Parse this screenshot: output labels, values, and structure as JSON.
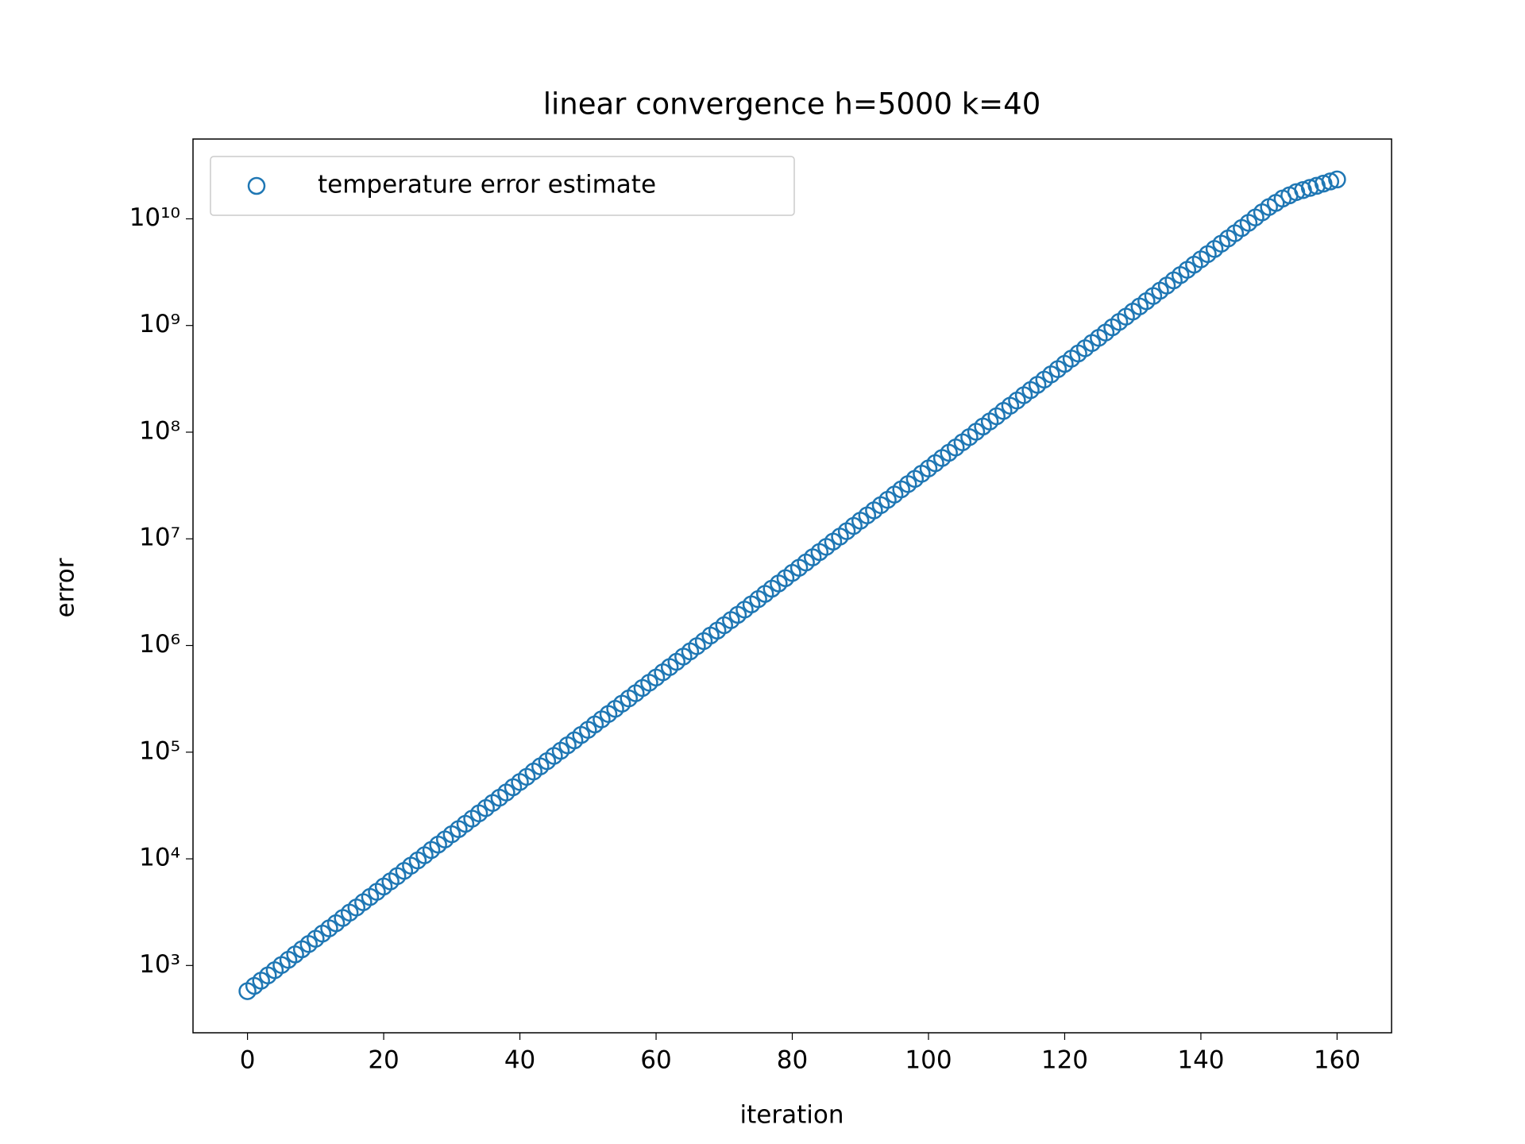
{
  "chart_data": {
    "type": "scatter",
    "title": "linear convergence h=5000 k=40",
    "xlabel": "iteration",
    "ylabel": "error",
    "yscale": "log",
    "legend": "upper left",
    "xlim": [
      -8,
      168
    ],
    "xticks": [
      0,
      20,
      40,
      60,
      80,
      100,
      120,
      140,
      160
    ],
    "ylim": [
      234,
      56000000000.0
    ],
    "yticks": [
      {
        "value": 1000,
        "label": "10³"
      },
      {
        "value": 10000,
        "label": "10⁴"
      },
      {
        "value": 100000,
        "label": "10⁵"
      },
      {
        "value": 1000000,
        "label": "10⁶"
      },
      {
        "value": 10000000,
        "label": "10⁷"
      },
      {
        "value": 100000000,
        "label": "10⁸"
      },
      {
        "value": 1000000000,
        "label": "10⁹"
      },
      {
        "value": 10000000000,
        "label": "10¹⁰"
      }
    ],
    "series": [
      {
        "name": "temperature error estimate",
        "color": "#1f77b4",
        "x": [
          0,
          1,
          2,
          3,
          4,
          5,
          6,
          7,
          8,
          9,
          10,
          11,
          12,
          13,
          14,
          15,
          16,
          17,
          18,
          19,
          20,
          21,
          22,
          23,
          24,
          25,
          26,
          27,
          28,
          29,
          30,
          31,
          32,
          33,
          34,
          35,
          36,
          37,
          38,
          39,
          40,
          41,
          42,
          43,
          44,
          45,
          46,
          47,
          48,
          49,
          50,
          51,
          52,
          53,
          54,
          55,
          56,
          57,
          58,
          59,
          60,
          61,
          62,
          63,
          64,
          65,
          66,
          67,
          68,
          69,
          70,
          71,
          72,
          73,
          74,
          75,
          76,
          77,
          78,
          79,
          80,
          81,
          82,
          83,
          84,
          85,
          86,
          87,
          88,
          89,
          90,
          91,
          92,
          93,
          94,
          95,
          96,
          97,
          98,
          99,
          100,
          101,
          102,
          103,
          104,
          105,
          106,
          107,
          108,
          109,
          110,
          111,
          112,
          113,
          114,
          115,
          116,
          117,
          118,
          119,
          120,
          121,
          122,
          123,
          124,
          125,
          126,
          127,
          128,
          129,
          130,
          131,
          132,
          133,
          134,
          135,
          136,
          137,
          138,
          139,
          140,
          141,
          142,
          143,
          144,
          145,
          146,
          147,
          148,
          149,
          150,
          151,
          152,
          153,
          154,
          155,
          156,
          157,
          158,
          159,
          160
        ],
        "values": [
          575.0,
          644.0,
          721.0,
          807.0,
          904.0,
          1010.0,
          1130.0,
          1270.0,
          1420.0,
          1590.0,
          1780.0,
          1990.0,
          2230.0,
          2490.0,
          2790.0,
          3130.0,
          3500.0,
          3920.0,
          4390.0,
          4910.0,
          5500.0,
          6150.0,
          6890.0,
          7710.0,
          8630.0,
          9660.0,
          10800.0,
          12100.0,
          13600.0,
          15200.0,
          17000.0,
          19000.0,
          21300.0,
          23800.0,
          26700.0,
          29900.0,
          33400.0,
          37400.0,
          41900.0,
          46900.0,
          52500.0,
          58700.0,
          65800.0,
          73600.0,
          82400.0,
          92300.0,
          103000.0,
          116000.0,
          129000.0,
          145000.0,
          162000.0,
          182000.0,
          203000.0,
          228000.0,
          255000.0,
          285000.0,
          319000.0,
          357000.0,
          400000.0,
          448000.0,
          501000.0,
          561000.0,
          628000.0,
          703000.0,
          787000.0,
          881000.0,
          986000.0,
          1100000.0,
          1240000.0,
          1380000.0,
          1550000.0,
          1730000.0,
          1940000.0,
          2170000.0,
          2430000.0,
          2720000.0,
          3050000.0,
          3410000.0,
          3820000.0,
          4280000.0,
          4790000.0,
          5360000.0,
          6000000.0,
          6710000.0,
          7520000.0,
          8410000.0,
          9420000.0,
          10500000.0,
          11800000.0,
          13200000.0,
          14800000.0,
          16600000.0,
          18500000.0,
          20700000.0,
          23200000.0,
          26000000.0,
          29100000.0,
          32600000.0,
          36500000.0,
          40800000.0,
          45700000.0,
          51200000.0,
          57300000.0,
          64100000.0,
          71800000.0,
          80400000.0,
          89900000.0,
          101000000.0,
          113000000.0,
          126000000.0,
          141000000.0,
          158000000.0,
          177000000.0,
          198000000.0,
          222000000.0,
          248000000.0,
          278000000.0,
          311000000.0,
          348000000.0,
          390000000.0,
          437000000.0,
          489000000.0,
          547000000.0,
          612000000.0,
          685000000.0,
          767000000.0,
          859000000.0,
          962000000.0,
          1080000000.0,
          1210000000.0,
          1350000000.0,
          1510000000.0,
          1690000000.0,
          1890000000.0,
          2120000000.0,
          2370000000.0,
          2650000000.0,
          2970000000.0,
          3330000000.0,
          3720000000.0,
          4170000000.0,
          4670000000.0,
          5220000000.0,
          5850000000.0,
          6550000000.0,
          7330000000.0,
          8200000000.0,
          9180000000.0,
          10300000000.0,
          11500000000.0,
          12900000000.0,
          14100000000.0,
          15500000000.0,
          16600000000.0,
          17800000000.0,
          18600000000.0,
          19500000000.0,
          20400000000.0,
          21400000000.0,
          22400000000.0,
          23400000000.0
        ]
      }
    ]
  }
}
